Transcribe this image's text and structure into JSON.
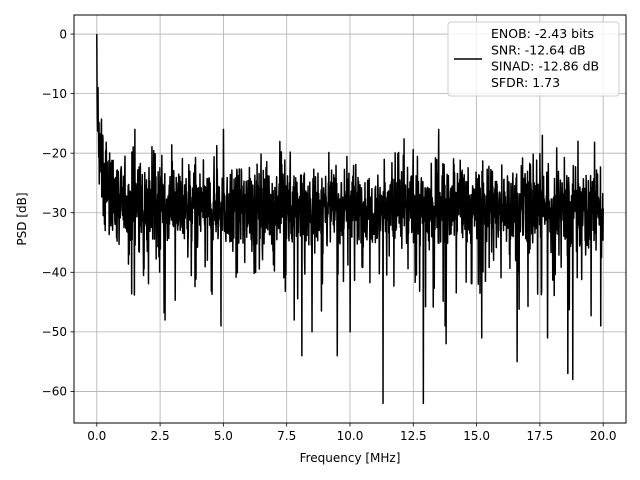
{
  "chart_data": {
    "type": "line",
    "xlabel": "Frequency [MHz]",
    "ylabel": "PSD [dB]",
    "xlim": [
      -0.9,
      20.9
    ],
    "ylim": [
      -65.3,
      3.2
    ],
    "xticks": [
      0.0,
      2.5,
      5.0,
      7.5,
      10.0,
      12.5,
      15.0,
      17.5,
      20.0
    ],
    "xtick_labels": [
      "0.0",
      "2.5",
      "5.0",
      "7.5",
      "10.0",
      "12.5",
      "15.0",
      "17.5",
      "20.0"
    ],
    "yticks": [
      0,
      -10,
      -20,
      -30,
      -40,
      -50,
      -60
    ],
    "ytick_labels": [
      "0",
      "−10",
      "−20",
      "−30",
      "−40",
      "−50",
      "−60"
    ],
    "grid": true,
    "legend_position": "top-right",
    "series": [
      {
        "name": "ENOB: -2.43 bits\nSNR: -12.64 dB\nSINAD: -12.86 dB\nSFDR: 1.73",
        "color": "#000000",
        "x_range": [
          0.0,
          20.0
        ],
        "peak": {
          "x": 0.0,
          "y": 0.0
        },
        "noise_floor_db": -29,
        "noise_band_db": [
          -38,
          -21
        ],
        "min_excursions": [
          {
            "x": 2.7,
            "y": -48
          },
          {
            "x": 4.9,
            "y": -49
          },
          {
            "x": 7.8,
            "y": -48
          },
          {
            "x": 8.1,
            "y": -54
          },
          {
            "x": 8.5,
            "y": -50
          },
          {
            "x": 9.5,
            "y": -54
          },
          {
            "x": 10.0,
            "y": -50
          },
          {
            "x": 11.3,
            "y": -62
          },
          {
            "x": 12.9,
            "y": -62
          },
          {
            "x": 13.8,
            "y": -52
          },
          {
            "x": 15.2,
            "y": -51
          },
          {
            "x": 16.6,
            "y": -55
          },
          {
            "x": 17.8,
            "y": -51
          },
          {
            "x": 18.6,
            "y": -57
          },
          {
            "x": 18.8,
            "y": -58
          },
          {
            "x": 19.9,
            "y": -49
          }
        ],
        "max_excursions": [
          {
            "x": 0.05,
            "y": -9
          },
          {
            "x": 1.5,
            "y": -16
          },
          {
            "x": 5.0,
            "y": -16
          },
          {
            "x": 13.5,
            "y": -16
          },
          {
            "x": 17.6,
            "y": -17
          },
          {
            "x": 19.0,
            "y": -18
          }
        ]
      }
    ]
  }
}
